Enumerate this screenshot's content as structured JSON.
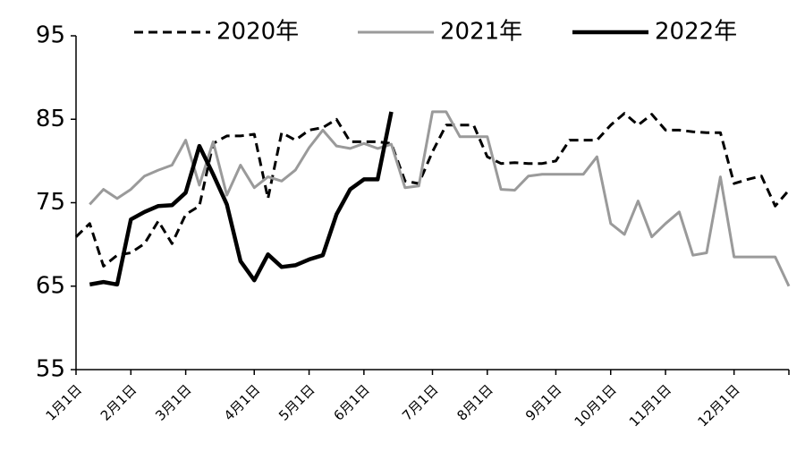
{
  "chart_data": {
    "type": "line",
    "categories": [
      "1月1日",
      null,
      null,
      null,
      "2月1日",
      null,
      null,
      null,
      "3月1日",
      null,
      null,
      null,
      null,
      "4月1日",
      null,
      null,
      null,
      "5月1日",
      null,
      null,
      null,
      "6月1日",
      null,
      null,
      null,
      null,
      "7月1日",
      null,
      null,
      null,
      "8月1日",
      null,
      null,
      null,
      null,
      "9月1日",
      null,
      null,
      null,
      "10月1日",
      null,
      null,
      null,
      "11月1日",
      null,
      null,
      null,
      null,
      "12月1日",
      null,
      null,
      null,
      null
    ],
    "series": [
      {
        "name": "2020年",
        "color": "#000000",
        "style": "dashed",
        "values": [
          70.9,
          72.5,
          67.4,
          68.7,
          69.0,
          70.1,
          72.8,
          70.1,
          73.6,
          74.6,
          82.1,
          83.0,
          83.0,
          83.2,
          75.5,
          83.4,
          82.5,
          83.7,
          84.0,
          85.0,
          82.3,
          82.3,
          82.3,
          82.1,
          77.6,
          77.3,
          81.1,
          84.3,
          84.3,
          84.3,
          80.5,
          79.7,
          79.8,
          79.7,
          79.7,
          80.0,
          82.5,
          82.5,
          82.5,
          84.3,
          85.7,
          84.3,
          85.6,
          83.7,
          83.7,
          83.5,
          83.4,
          83.4,
          77.3,
          77.8,
          78.2,
          74.6,
          76.5
        ]
      },
      {
        "name": "2021年",
        "color": "#9a9a9a",
        "style": "solid",
        "values": [
          null,
          74.8,
          76.6,
          75.5,
          76.6,
          78.2,
          78.9,
          79.5,
          82.5,
          77.1,
          82.3,
          75.9,
          79.5,
          76.8,
          78.1,
          77.6,
          78.9,
          81.6,
          83.7,
          81.8,
          81.5,
          82.1,
          81.5,
          82.0,
          76.8,
          77.0,
          85.9,
          85.9,
          82.9,
          82.9,
          82.9,
          76.6,
          76.5,
          78.2,
          78.4,
          78.4,
          78.4,
          78.4,
          80.5,
          72.5,
          71.2,
          75.2,
          70.9,
          72.5,
          73.9,
          68.7,
          69.0,
          78.1,
          68.5,
          68.5,
          68.5,
          68.5,
          65.0
        ]
      },
      {
        "name": "2022年",
        "color": "#000000",
        "style": "bold",
        "values": [
          null,
          65.2,
          65.5,
          65.2,
          73.0,
          73.9,
          74.6,
          74.7,
          76.2,
          81.8,
          78.4,
          74.8,
          68.0,
          65.7,
          68.8,
          67.3,
          67.5,
          68.2,
          68.7,
          73.6,
          76.6,
          77.8,
          77.8,
          85.9,
          null,
          null,
          null,
          null,
          null,
          null,
          null,
          null,
          null,
          null,
          null,
          null,
          null,
          null,
          null,
          null,
          null,
          null,
          null,
          null,
          null,
          null,
          null,
          null,
          null,
          null,
          null,
          null,
          null
        ]
      }
    ],
    "ylim": [
      55,
      95
    ],
    "yticks": [
      55,
      65,
      75,
      85,
      95
    ],
    "grid": false,
    "legend": "top"
  }
}
